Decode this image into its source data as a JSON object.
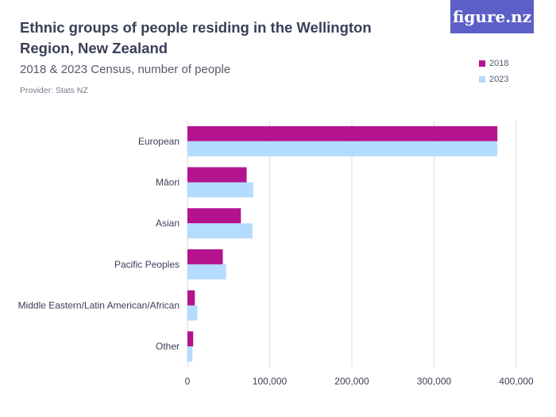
{
  "header": {
    "title": "Ethnic groups of people residing in the Wellington Region, New Zealand",
    "subtitle": "2018 & 2023 Census, number of people",
    "provider": "Provider: Stats NZ",
    "logo_text": "figure.nz"
  },
  "colors": {
    "series_2018": "#b5128f",
    "series_2023": "#b3dcff",
    "logo_bg": "#5b5fc7",
    "grid": "#dddddd"
  },
  "chart_data": {
    "type": "bar",
    "orientation": "horizontal",
    "categories": [
      "European",
      "Māori",
      "Asian",
      "Pacific Peoples",
      "Middle Eastern/Latin American/African",
      "Other"
    ],
    "series": [
      {
        "name": "2018",
        "values": [
          377000,
          72000,
          65000,
          43000,
          9000,
          7000
        ]
      },
      {
        "name": "2023",
        "values": [
          377000,
          80000,
          79000,
          47000,
          12000,
          6000
        ]
      }
    ],
    "xlim": [
      0,
      400000
    ],
    "xticks": [
      0,
      100000,
      200000,
      300000,
      400000
    ],
    "xtick_labels": [
      "0",
      "100,000",
      "200,000",
      "300,000",
      "400,000"
    ],
    "legend_position": "top-right",
    "grid": true
  }
}
